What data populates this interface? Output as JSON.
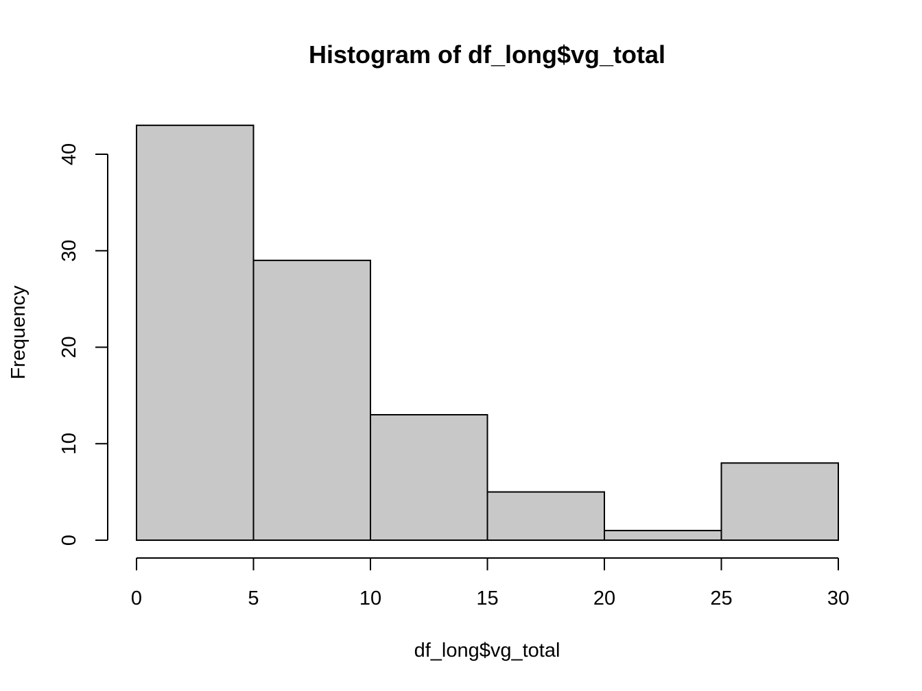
{
  "chart_data": {
    "type": "bar",
    "title": "Histogram of df_long$vg_total",
    "xlabel": "df_long$vg_total",
    "ylabel": "Frequency",
    "bins": [
      {
        "from": 0,
        "to": 5,
        "count": 43
      },
      {
        "from": 5,
        "to": 10,
        "count": 29
      },
      {
        "from": 10,
        "to": 15,
        "count": 13
      },
      {
        "from": 15,
        "to": 20,
        "count": 5
      },
      {
        "from": 20,
        "to": 25,
        "count": 1
      },
      {
        "from": 25,
        "to": 30,
        "count": 8
      }
    ],
    "x_ticks": [
      0,
      5,
      10,
      15,
      20,
      25,
      30
    ],
    "y_ticks": [
      0,
      10,
      20,
      30,
      40
    ],
    "xlim": [
      0,
      30
    ],
    "ylim": [
      0,
      43
    ],
    "bar_fill": "#c8c8c8",
    "bar_stroke": "#000000",
    "grid": false,
    "legend": "none"
  }
}
